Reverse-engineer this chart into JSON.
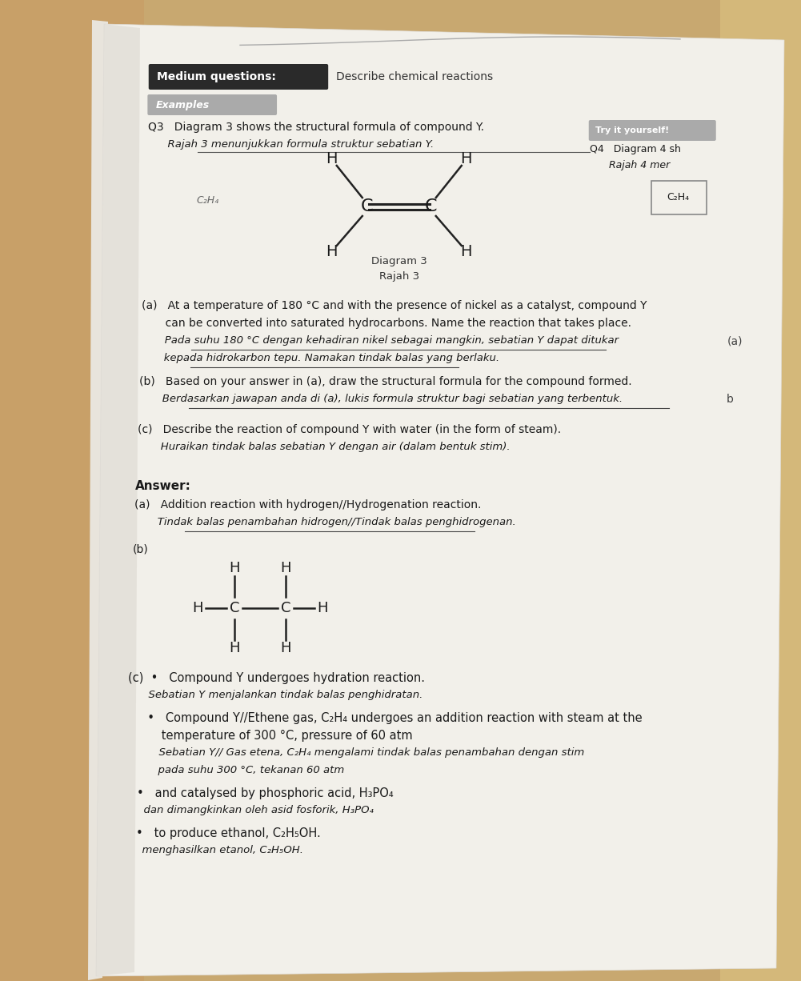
{
  "bg_wood_left": "#c8a870",
  "bg_wood_right": "#d4b882",
  "page_bg": "#f0eee8",
  "page_shadow": "#d0cec8",
  "title_bar_bg": "#2a2a2a",
  "title_bar_text": "Medium questions:",
  "title_bar_desc": "Describe chemical reactions",
  "example_bg": "#aaaaaa",
  "example_text": "Examples",
  "try_bg": "#aaaaaa",
  "try_text": "Try it yourself!",
  "q3_line1": "Q3   Diagram 3 shows the structural formula of compound Y.",
  "q3_line2": "      Rajah 3 menunjukkan formula struktur sebatian Y.",
  "q4_line1": "Q4   Diagram 4 sh",
  "q4_line2": "      Rajah 4 mer",
  "c2h4_label": "C₂H₄",
  "diagram_label": "Diagram 3\nRajah 3",
  "c2h4_note": "C₂H₄",
  "qa_a_1": "(a)   At a temperature of 180 °C and with the presence of nickel as a catalyst, compound Y",
  "qa_a_2": "       can be converted into saturated hydrocarbons. Name the reaction that takes place.",
  "qa_a_3": "       Pada suhu 180 °C dengan kehadiran nikel sebagai mangkin, sebatian Y dapat ditukar",
  "qa_a_4": "       kepada hidrokarbon tepu. Namakan tindak balas yang berlaku.",
  "qa_b_1": "(b)   Based on your answer in (a), draw the structural formula for the compound formed.",
  "qa_b_2": "       Berdasarkan jawapan anda di (a), lukis formula struktur bagi sebatian yang terbentuk.",
  "qa_c_1": "(c)   Describe the reaction of compound Y with water (in the form of steam).",
  "qa_c_2": "       Huraikan tindak balas sebatian Y dengan air (dalam bentuk stim).",
  "ans_label": "Answer:",
  "ans_a_1": "(a)   Addition reaction with hydrogen//Hydrogenation reaction.",
  "ans_a_2": "       Tindak balas penambahan hidrogen//Tindak balas penghidrogenan.",
  "ans_b_label": "(b)",
  "ans_c_1a": "(c)  •   Compound Y undergoes hydration reaction.",
  "ans_c_1b": "      Sebatian Y menjalankan tindak balas penghidratan.",
  "ans_c_2a": "  •   Compound Y//Ethene gas, C₂H₄ undergoes an addition reaction with steam at the",
  "ans_c_2b": "      temperature of 300 °C, pressure of 60 atm",
  "ans_c_2c": "      Sebatian Y// Gas etena, C₂H₄ mengalami tindak balas penambahan dengan stim",
  "ans_c_2d": "      pada suhu 300 °C, tekanan 60 atm",
  "ans_c_3a": "•   and catalysed by phosphoric acid, H₃PO₄",
  "ans_c_3b": "  dan dimangkinkan oleh asid fosforik, H₃PO₄",
  "ans_c_4a": "•   to produce ethanol, C₂H₅OH.",
  "ans_c_4b": "  menghasilkan etanol, C₂H₅OH."
}
